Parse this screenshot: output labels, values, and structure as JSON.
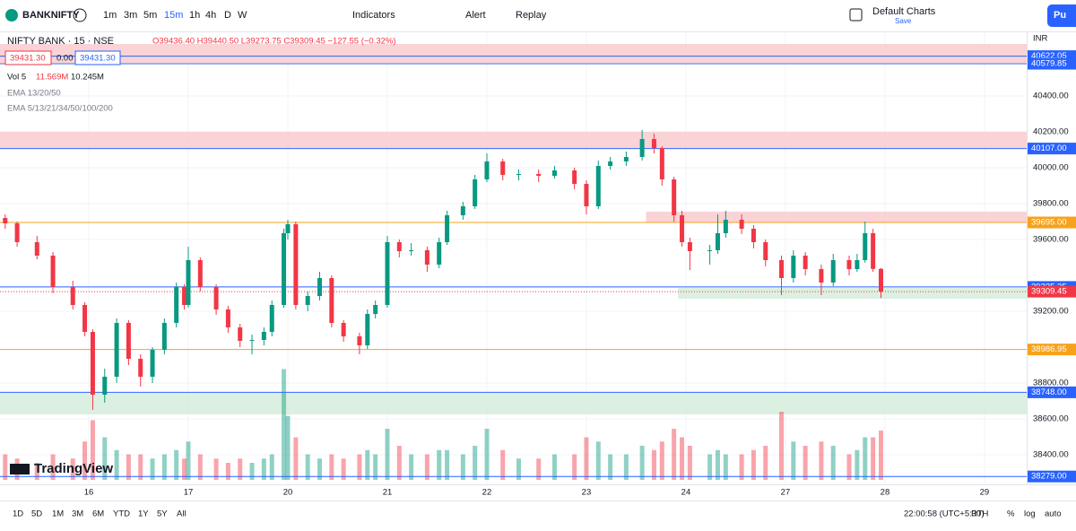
{
  "toolbar": {
    "symbol": "BANKNIFTY",
    "intervals": [
      "1m",
      "3m",
      "5m",
      "15m",
      "1h",
      "4h",
      "D",
      "W"
    ],
    "indicators": "Indicators",
    "alert": "Alert",
    "replay": "Replay",
    "layout": "Default Charts",
    "save": "Save",
    "publish": "Pu"
  },
  "legend": {
    "name": "NIFTY BANK · 15 · NSE",
    "ohlc": "O39436.40 H39440.50 L39273.75 C39309.45 −127.55 (−0.32%)",
    "bid": "39431.30",
    "spread": "0.00",
    "ask": "39431.30",
    "vol": "Vol 5",
    "vol_value": "11.569M",
    "vol_ma": "10.245M",
    "ema1": "EMA 13/20/50",
    "ema2": "EMA 5/13/21/34/50/100/200",
    "logo": "TradingView",
    "currency": "INR"
  },
  "chart_data": {
    "type": "candlestick",
    "x": [
      1,
      4,
      9,
      13,
      18,
      21,
      23,
      26,
      29,
      32,
      35,
      38,
      41,
      44,
      46,
      47,
      50,
      54,
      57,
      60,
      63,
      66,
      68,
      71,
      72,
      74,
      77,
      80,
      83,
      86,
      90,
      92,
      94,
      97,
      100,
      103,
      107,
      110,
      112,
      116,
      119,
      122,
      126,
      130,
      135,
      139,
      144,
      147,
      150,
      153,
      157,
      161,
      164,
      166,
      169,
      171,
      173,
      178,
      180,
      182,
      186,
      189,
      192,
      196,
      199,
      202,
      206,
      209,
      213,
      215,
      217,
      219,
      221
    ],
    "open": [
      39720,
      39690,
      39585,
      39510,
      39335,
      39235,
      39085,
      38735,
      38835,
      39135,
      38935,
      38835,
      38985,
      39135,
      39335,
      39235,
      39485,
      39335,
      39210,
      39110,
      39035,
      39040,
      39085,
      39235,
      39635,
      39685,
      39235,
      39285,
      39385,
      39135,
      39060,
      39010,
      39185,
      39235,
      39585,
      39535,
      39540,
      39460,
      39585,
      39735,
      39785,
      39935,
      40035,
      39960,
      39965,
      39955,
      39985,
      39910,
      39785,
      40010,
      40035,
      40060,
      40160,
      40110,
      39935,
      39735,
      39585,
      39535,
      39540,
      39635,
      39710,
      39660,
      39585,
      39485,
      39385,
      39510,
      39435,
      39360,
      39485,
      39435,
      39485,
      39635,
      39436.4
    ],
    "high": [
      39740,
      39700,
      39620,
      39530,
      39370,
      39250,
      39100,
      38880,
      39160,
      39150,
      38960,
      39000,
      39160,
      39360,
      39350,
      39560,
      39500,
      39350,
      39230,
      39130,
      39070,
      39110,
      39260,
      39660,
      39710,
      39700,
      39310,
      39420,
      39400,
      39150,
      39080,
      39210,
      39260,
      39620,
      39600,
      39580,
      39560,
      39610,
      39760,
      39810,
      39960,
      40080,
      40050,
      39990,
      39990,
      40010,
      40000,
      39930,
      40040,
      40060,
      40090,
      40210,
      40190,
      40120,
      39950,
      39760,
      39610,
      39570,
      39740,
      39760,
      39740,
      39680,
      39600,
      39510,
      39540,
      39530,
      39460,
      39520,
      39510,
      39520,
      39700,
      39660,
      39440.5
    ],
    "low": [
      39660,
      39560,
      39490,
      39300,
      39210,
      39060,
      38650,
      38690,
      38800,
      38900,
      38780,
      38800,
      38960,
      39110,
      39210,
      39220,
      39310,
      39180,
      39080,
      39000,
      38960,
      39010,
      39060,
      39220,
      39600,
      39210,
      39200,
      39260,
      39110,
      39030,
      38960,
      38990,
      39160,
      39220,
      39500,
      39510,
      39420,
      39440,
      39570,
      39710,
      39770,
      39920,
      39930,
      39930,
      39920,
      39940,
      39880,
      39740,
      39770,
      39990,
      40010,
      40040,
      40080,
      39900,
      39700,
      39560,
      39430,
      39460,
      39520,
      39610,
      39630,
      39550,
      39450,
      39290,
      39360,
      39400,
      39290,
      39340,
      39400,
      39420,
      39470,
      39420,
      39273.75
    ],
    "close": [
      39690,
      39585,
      39510,
      39335,
      39235,
      39085,
      38735,
      38835,
      39135,
      38935,
      38835,
      38985,
      39135,
      39335,
      39235,
      39485,
      39335,
      39210,
      39110,
      39035,
      39040,
      39085,
      39235,
      39635,
      39685,
      39235,
      39285,
      39385,
      39135,
      39060,
      39010,
      39185,
      39235,
      39585,
      39535,
      39540,
      39460,
      39585,
      39735,
      39785,
      39935,
      40035,
      39960,
      39965,
      39955,
      39985,
      39910,
      39785,
      40010,
      40035,
      40060,
      40160,
      40110,
      39935,
      39735,
      39585,
      39535,
      39540,
      39635,
      39710,
      39660,
      39585,
      39485,
      39385,
      39510,
      39435,
      39360,
      39485,
      39435,
      39485,
      39635,
      39436,
      39309.45
    ],
    "volume": [
      6,
      5,
      4,
      6,
      5,
      9,
      14,
      10,
      7,
      6,
      6,
      5,
      6,
      7,
      5,
      9,
      6,
      5,
      4,
      5,
      4,
      5,
      6,
      26,
      15,
      10,
      6,
      5,
      6,
      5,
      6,
      7,
      6,
      12,
      8,
      6,
      6,
      7,
      7,
      6,
      8,
      12,
      7,
      5,
      5,
      6,
      6,
      10,
      9,
      6,
      6,
      8,
      7,
      9,
      12,
      10,
      8,
      6,
      7,
      6,
      6,
      7,
      8,
      16,
      9,
      8,
      9,
      8,
      6,
      7,
      10,
      10,
      11.569
    ],
    "xlim": [
      -0.3,
      257.6
    ],
    "xticks": [
      {
        "value": 22,
        "label": "16"
      },
      {
        "value": 47,
        "label": "17"
      },
      {
        "value": 72,
        "label": "20"
      },
      {
        "value": 97,
        "label": "21"
      },
      {
        "value": 122,
        "label": "22"
      },
      {
        "value": 147,
        "label": "23"
      },
      {
        "value": 172,
        "label": "24"
      },
      {
        "value": 197,
        "label": "27"
      },
      {
        "value": 222,
        "label": "28"
      },
      {
        "value": 247,
        "label": "29"
      }
    ],
    "ylim": [
      38235,
      40755
    ],
    "yticks": [
      {
        "value": 40400,
        "label": "40400.00"
      },
      {
        "value": 40200,
        "label": "40200.00"
      },
      {
        "value": 40000,
        "label": "40000.00"
      },
      {
        "value": 39800,
        "label": "39800.00"
      },
      {
        "value": 39600,
        "label": "39600.00"
      },
      {
        "value": 39200,
        "label": "39200.00"
      },
      {
        "value": 38800,
        "label": "38800.00"
      },
      {
        "value": 38600,
        "label": "38600.00"
      },
      {
        "value": 38400,
        "label": "38400.00"
      }
    ],
    "up_color": "#089981",
    "down_color": "#f23645",
    "levels": [
      {
        "value": 40622.05,
        "label": "40622.05",
        "color": "#2962ff"
      },
      {
        "value": 40579.85,
        "label": "40579.85",
        "color": "#2962ff"
      },
      {
        "value": 40107,
        "label": "40107.00",
        "color": "#2962ff"
      },
      {
        "value": 39695,
        "label": "39695.00",
        "color": "#f7a21b"
      },
      {
        "value": 39335.35,
        "label": "39335.35",
        "color": "#2962ff"
      },
      {
        "value": 39309.45,
        "label": "39309.45",
        "color": "#f23645"
      },
      {
        "value": 38986.95,
        "label": "38986.95",
        "color": "#f7a21b"
      },
      {
        "value": 38748,
        "label": "38748.00",
        "color": "#2962ff"
      },
      {
        "value": 38279,
        "label": "38279.00",
        "color": "#2962ff"
      }
    ],
    "zones": [
      {
        "low": 40585,
        "high": 40690,
        "start": -0.3,
        "color": "#f8c8cc"
      },
      {
        "low": 40110,
        "high": 40200,
        "start": -0.3,
        "color": "#f8c8cc"
      },
      {
        "low": 39695,
        "high": 39755,
        "start": 162,
        "color": "#f8c8cc"
      },
      {
        "low": 39270,
        "high": 39330,
        "start": 170,
        "color": "#d3ecd9"
      },
      {
        "low": 38625,
        "high": 38745,
        "start": -0.3,
        "color": "#d3ecd9"
      }
    ]
  },
  "bottom_bar": {
    "ranges": [
      "1D",
      "5D",
      "1M",
      "3M",
      "6M",
      "YTD",
      "1Y",
      "5Y",
      "All"
    ],
    "time": "22:00:58 (UTC+5:30)",
    "percent": "%",
    "log": "log",
    "auto": "auto",
    "session": "RTH"
  }
}
